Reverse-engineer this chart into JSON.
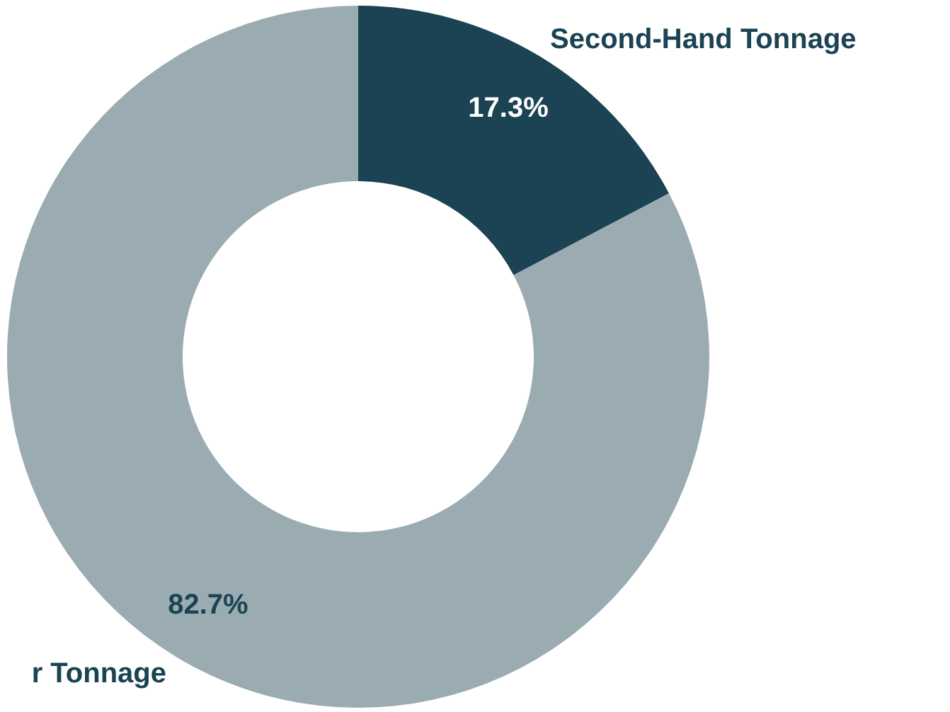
{
  "chart_data": {
    "type": "donut",
    "categories": [
      "Second-Hand Tonnage",
      "r Tonnage"
    ],
    "values": [
      17.3,
      82.7
    ],
    "colors": [
      "#1b4353",
      "#9aabb2"
    ],
    "value_labels": [
      "17.3%",
      "82.7%"
    ]
  }
}
